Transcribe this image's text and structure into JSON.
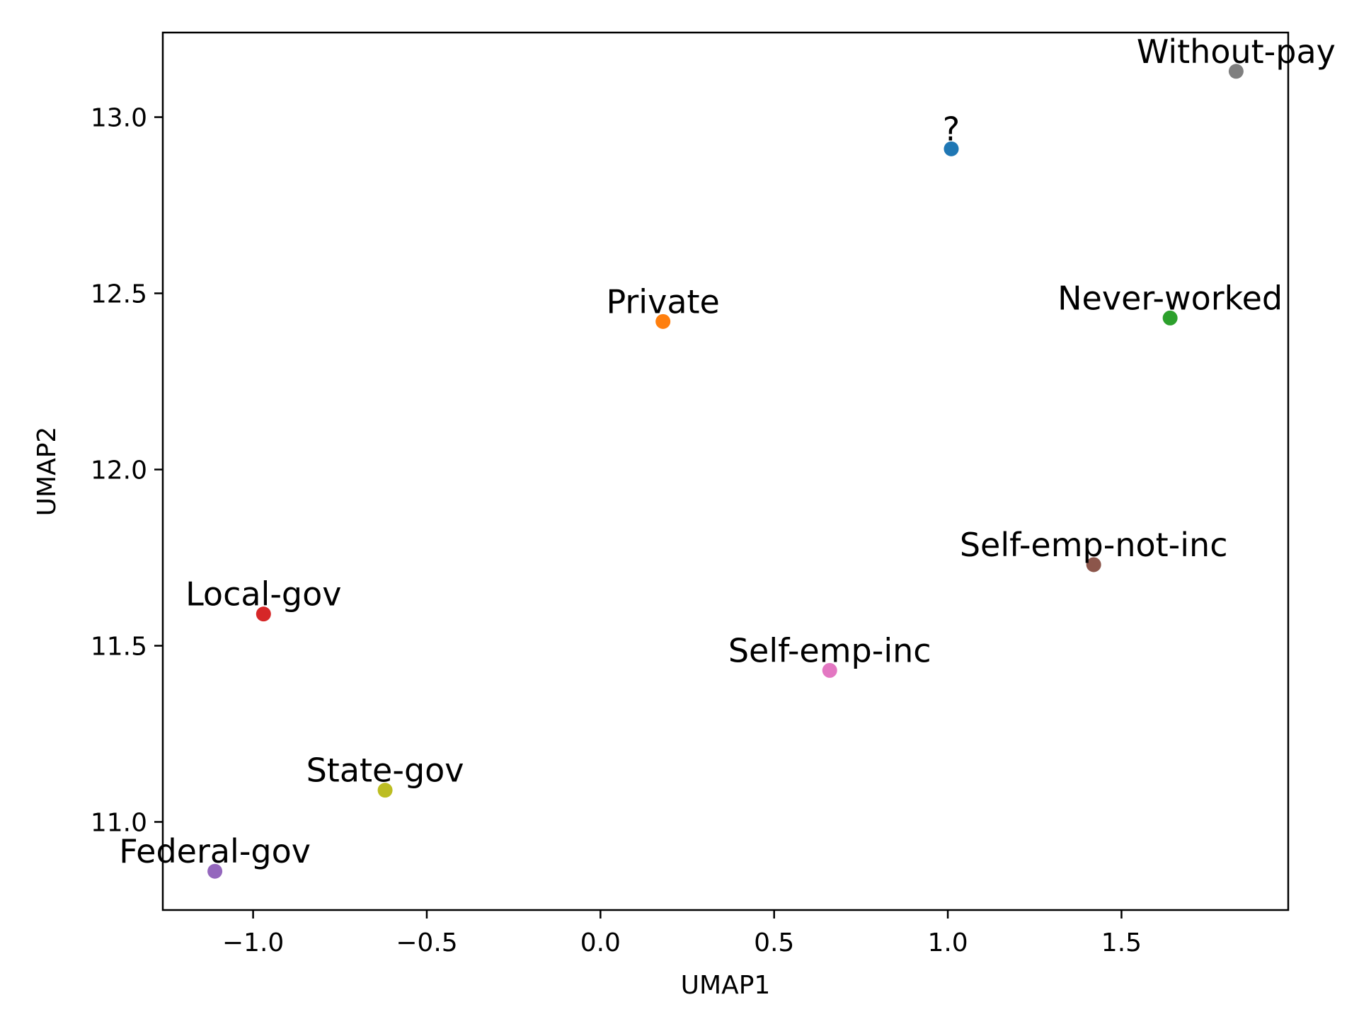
{
  "chart_data": {
    "type": "scatter",
    "title": "",
    "xlabel": "UMAP1",
    "ylabel": "UMAP2",
    "xlim": [
      -1.26,
      1.98
    ],
    "ylim": [
      10.75,
      13.24
    ],
    "grid": false,
    "xticks": [
      {
        "value": -1.0,
        "label": "−1.0"
      },
      {
        "value": -0.5,
        "label": "−0.5"
      },
      {
        "value": 0.0,
        "label": "0.0"
      },
      {
        "value": 0.5,
        "label": "0.5"
      },
      {
        "value": 1.0,
        "label": "1.0"
      },
      {
        "value": 1.5,
        "label": "1.5"
      }
    ],
    "yticks": [
      {
        "value": 11.0,
        "label": "11.0"
      },
      {
        "value": 11.5,
        "label": "11.5"
      },
      {
        "value": 12.0,
        "label": "12.0"
      },
      {
        "value": 12.5,
        "label": "12.5"
      },
      {
        "value": 13.0,
        "label": "13.0"
      }
    ],
    "points": [
      {
        "label": "?",
        "x": 1.01,
        "y": 12.91,
        "color": "#1f77b4"
      },
      {
        "label": "Private",
        "x": 0.18,
        "y": 12.42,
        "color": "#ff7f0e"
      },
      {
        "label": "Never-worked",
        "x": 1.64,
        "y": 12.43,
        "color": "#2ca02c"
      },
      {
        "label": "Local-gov",
        "x": -0.97,
        "y": 11.59,
        "color": "#d62728"
      },
      {
        "label": "Federal-gov",
        "x": -1.11,
        "y": 10.86,
        "color": "#9467bd"
      },
      {
        "label": "Self-emp-not-inc",
        "x": 1.42,
        "y": 11.73,
        "color": "#8c564b"
      },
      {
        "label": "Self-emp-inc",
        "x": 0.66,
        "y": 11.43,
        "color": "#e377c2"
      },
      {
        "label": "Without-pay",
        "x": 1.83,
        "y": 13.13,
        "color": "#7f7f7f"
      },
      {
        "label": "State-gov",
        "x": -0.62,
        "y": 11.09,
        "color": "#bcbd22"
      }
    ]
  }
}
